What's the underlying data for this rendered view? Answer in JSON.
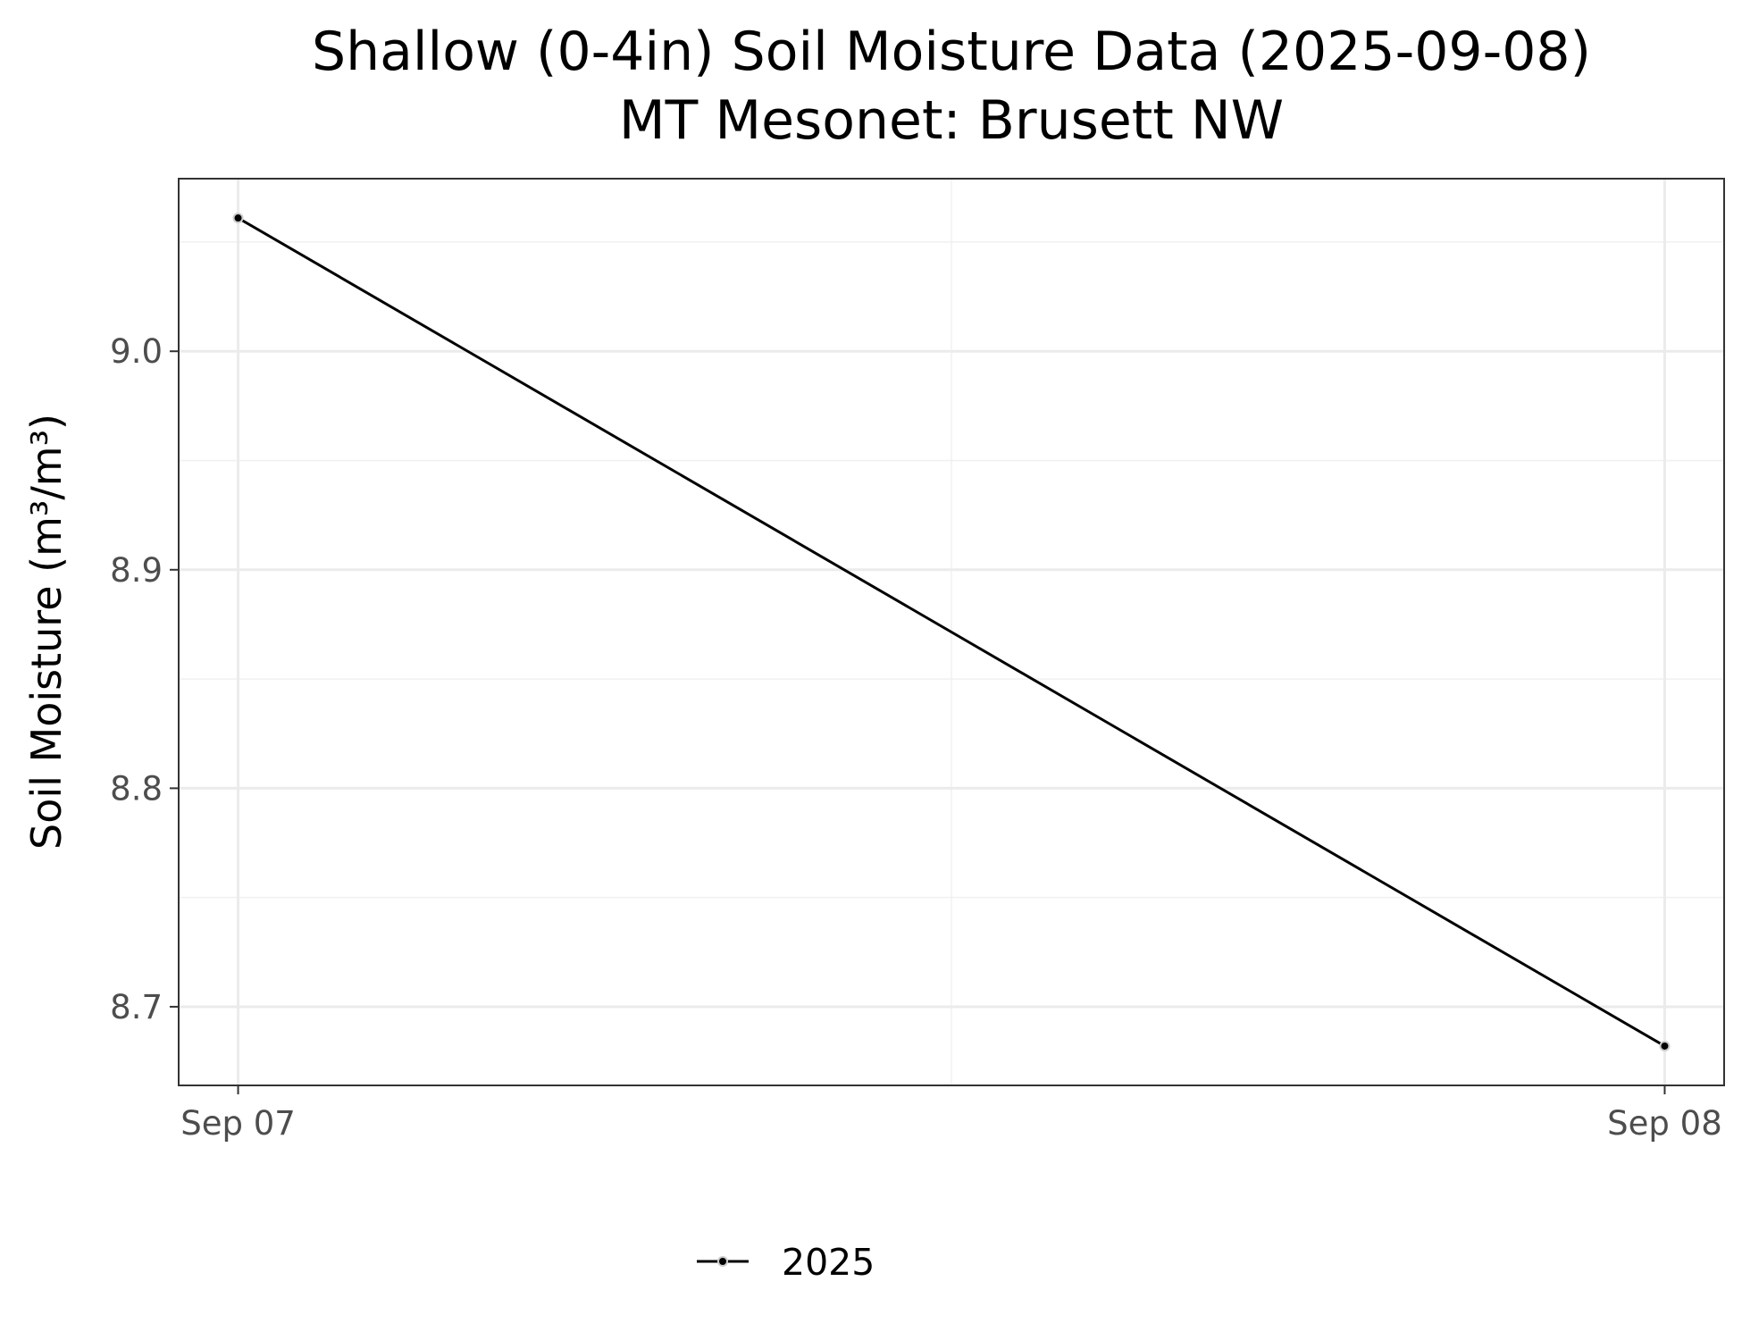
{
  "chart_data": {
    "type": "line",
    "title": "Shallow (0-4in) Soil Moisture Data (2025-09-08)",
    "subtitle": "MT Mesonet: Brusett NW",
    "xlabel": "",
    "ylabel": "Soil Moisture (m³/m³)",
    "x_ticks": [
      "Sep 07",
      "Sep 08"
    ],
    "y_ticks": [
      "8.7",
      "8.8",
      "8.9",
      "9.0"
    ],
    "xlim": [
      "2025-09-06T23:00",
      "2025-09-08T01:00"
    ],
    "ylim": [
      8.664,
      9.079
    ],
    "grid": true,
    "legend_position": "bottom",
    "series": [
      {
        "name": "2025",
        "color": "#000000",
        "x": [
          "2025-09-07",
          "2025-09-08"
        ],
        "y": [
          9.061,
          8.682
        ]
      }
    ]
  }
}
